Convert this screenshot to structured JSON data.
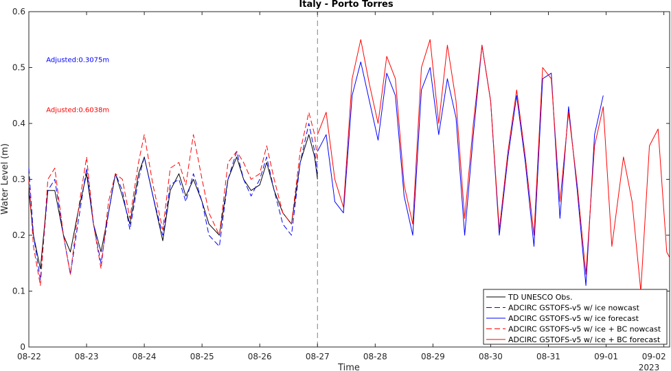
{
  "chart_data": {
    "type": "line",
    "title": "Italy - Porto Torres",
    "xlabel": "Time",
    "ylabel": "Water Level (m)",
    "xlim": [
      0,
      11.1
    ],
    "ylim": [
      0,
      0.6
    ],
    "yticks": [
      0,
      0.1,
      0.2,
      0.3,
      0.4,
      0.5,
      0.6
    ],
    "ytick_labels": [
      "0",
      "0.1",
      "0.2",
      "0.3",
      "0.4",
      "0.5",
      "0.6"
    ],
    "xticks": [
      0,
      1,
      2,
      3,
      4,
      5,
      6,
      7,
      8,
      9,
      10,
      11
    ],
    "xtick_labels": [
      "08-22",
      "08-23",
      "08-24",
      "08-25",
      "08-26",
      "08-27",
      "08-28",
      "08-29",
      "08-30",
      "08-31",
      "09-01",
      "09-02"
    ],
    "x_secondary_label": "2023",
    "forecast_start_x": 5,
    "grid": false,
    "legend_position": "bottom-right",
    "annotations": [
      {
        "text": "Adjusted:0.3075m",
        "color": "#0000ff",
        "x": 0.3,
        "y": 0.51
      },
      {
        "text": "Adjusted:0.6038m",
        "color": "#ff0000",
        "x": 0.3,
        "y": 0.42
      }
    ],
    "series": [
      {
        "name": "TD UNESCO Obs.",
        "color": "#000000",
        "dash": "solid",
        "x": [
          0,
          0.08,
          0.2,
          0.33,
          0.45,
          0.6,
          0.72,
          0.85,
          1.0,
          1.12,
          1.25,
          1.38,
          1.5,
          1.62,
          1.75,
          1.9,
          2.0,
          2.15,
          2.32,
          2.45,
          2.6,
          2.72,
          2.85,
          3.0,
          3.12,
          3.3,
          3.45,
          3.6,
          3.72,
          3.85,
          4.0,
          4.12,
          4.25,
          4.4,
          4.55,
          4.7,
          4.85,
          4.95,
          5.0
        ],
        "y": [
          0.28,
          0.2,
          0.14,
          0.28,
          0.28,
          0.2,
          0.17,
          0.24,
          0.31,
          0.22,
          0.17,
          0.24,
          0.31,
          0.27,
          0.22,
          0.31,
          0.34,
          0.27,
          0.19,
          0.28,
          0.31,
          0.27,
          0.3,
          0.26,
          0.22,
          0.2,
          0.3,
          0.34,
          0.3,
          0.28,
          0.29,
          0.33,
          0.28,
          0.24,
          0.22,
          0.33,
          0.38,
          0.34,
          0.3
        ]
      },
      {
        "name": "ADCIRC GSTOFS-v5 w/ ice nowcast",
        "color": "#0000ff",
        "dash": "dashed",
        "x": [
          0,
          0.08,
          0.2,
          0.33,
          0.45,
          0.6,
          0.72,
          0.85,
          1.0,
          1.12,
          1.25,
          1.38,
          1.5,
          1.62,
          1.75,
          1.9,
          2.0,
          2.15,
          2.32,
          2.45,
          2.6,
          2.72,
          2.85,
          3.0,
          3.12,
          3.3,
          3.45,
          3.6,
          3.72,
          3.85,
          4.0,
          4.12,
          4.25,
          4.4,
          4.55,
          4.7,
          4.85,
          4.95,
          5.0
        ],
        "y": [
          0.32,
          0.2,
          0.12,
          0.28,
          0.3,
          0.2,
          0.13,
          0.22,
          0.32,
          0.22,
          0.15,
          0.24,
          0.31,
          0.28,
          0.21,
          0.3,
          0.34,
          0.27,
          0.2,
          0.29,
          0.3,
          0.26,
          0.31,
          0.26,
          0.2,
          0.18,
          0.3,
          0.35,
          0.3,
          0.27,
          0.3,
          0.34,
          0.28,
          0.22,
          0.2,
          0.33,
          0.4,
          0.35,
          0.31
        ]
      },
      {
        "name": "ADCIRC GSTOFS-v5 w/ ice forecast",
        "color": "#0000ff",
        "dash": "solid",
        "x": [
          5.0,
          5.15,
          5.3,
          5.45,
          5.6,
          5.75,
          5.9,
          6.05,
          6.2,
          6.35,
          6.5,
          6.65,
          6.8,
          6.95,
          7.1,
          7.25,
          7.4,
          7.55,
          7.7,
          7.85,
          8.0,
          8.15,
          8.3,
          8.45,
          8.6,
          8.75,
          8.9,
          9.05,
          9.2,
          9.35,
          9.5,
          9.65,
          9.8,
          9.95
        ],
        "y": [
          0.35,
          0.38,
          0.26,
          0.24,
          0.45,
          0.51,
          0.44,
          0.37,
          0.49,
          0.45,
          0.27,
          0.2,
          0.46,
          0.5,
          0.38,
          0.48,
          0.41,
          0.2,
          0.38,
          0.54,
          0.44,
          0.2,
          0.34,
          0.45,
          0.33,
          0.18,
          0.48,
          0.49,
          0.23,
          0.43,
          0.28,
          0.11,
          0.38,
          0.45
        ]
      },
      {
        "name": "ADCIRC GSTOFS-v5 w/ ice + BC nowcast",
        "color": "#ff0000",
        "dash": "dashed",
        "x": [
          0,
          0.08,
          0.2,
          0.33,
          0.45,
          0.6,
          0.72,
          0.85,
          1.0,
          1.12,
          1.25,
          1.38,
          1.5,
          1.62,
          1.75,
          1.9,
          2.0,
          2.15,
          2.32,
          2.45,
          2.6,
          2.72,
          2.85,
          3.0,
          3.12,
          3.3,
          3.45,
          3.6,
          3.72,
          3.85,
          4.0,
          4.12,
          4.25,
          4.4,
          4.55,
          4.7,
          4.85,
          4.95,
          5.0
        ],
        "y": [
          0.3,
          0.18,
          0.11,
          0.3,
          0.32,
          0.2,
          0.13,
          0.24,
          0.34,
          0.22,
          0.14,
          0.26,
          0.31,
          0.3,
          0.23,
          0.33,
          0.38,
          0.29,
          0.21,
          0.32,
          0.33,
          0.29,
          0.38,
          0.3,
          0.24,
          0.2,
          0.33,
          0.35,
          0.33,
          0.3,
          0.31,
          0.36,
          0.3,
          0.24,
          0.22,
          0.35,
          0.42,
          0.38,
          0.33
        ]
      },
      {
        "name": "ADCIRC GSTOFS-v5 w/ ice + BC forecast",
        "color": "#ff0000",
        "dash": "solid",
        "x": [
          5.0,
          5.15,
          5.3,
          5.45,
          5.6,
          5.75,
          5.9,
          6.05,
          6.2,
          6.35,
          6.5,
          6.65,
          6.8,
          6.95,
          7.1,
          7.25,
          7.4,
          7.55,
          7.7,
          7.85,
          8.0,
          8.15,
          8.3,
          8.45,
          8.6,
          8.75,
          8.9,
          9.05,
          9.2,
          9.35,
          9.5,
          9.65,
          9.8,
          9.95,
          10.1,
          10.3,
          10.45,
          10.6,
          10.75,
          10.9,
          11.05,
          11.1
        ],
        "y": [
          0.38,
          0.42,
          0.3,
          0.25,
          0.48,
          0.55,
          0.47,
          0.4,
          0.52,
          0.48,
          0.29,
          0.22,
          0.5,
          0.55,
          0.4,
          0.54,
          0.44,
          0.23,
          0.4,
          0.54,
          0.44,
          0.21,
          0.35,
          0.46,
          0.34,
          0.2,
          0.5,
          0.48,
          0.26,
          0.42,
          0.29,
          0.13,
          0.36,
          0.43,
          0.18,
          0.34,
          0.26,
          0.1,
          0.36,
          0.39,
          0.17,
          0.16
        ]
      }
    ]
  }
}
